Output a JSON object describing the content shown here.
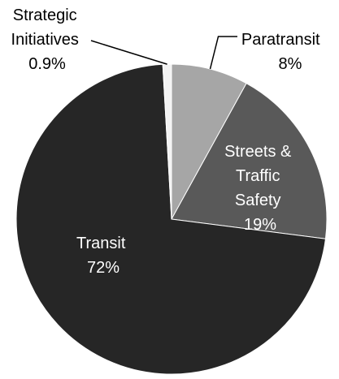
{
  "chart_data": {
    "type": "pie",
    "title": "",
    "start_angle_deg": 0,
    "direction": "clockwise",
    "slices": [
      {
        "name": "Paratransit",
        "value": 8,
        "value_label": "8%",
        "color": "#a6a6a6",
        "label_color": "#000000"
      },
      {
        "name": "Streets & Traffic Safety",
        "name_lines": [
          "Streets &",
          "Traffic",
          "Safety"
        ],
        "value": 19,
        "value_label": "19%",
        "color": "#595959",
        "label_color": "#ffffff"
      },
      {
        "name": "Transit",
        "value": 72,
        "value_label": "72%",
        "color": "#262626",
        "label_color": "#ffffff"
      },
      {
        "name": "Strategic Initiatives",
        "name_lines": [
          "Strategic",
          "Initiatives"
        ],
        "value": 0.9,
        "value_label": "0.9%",
        "color": "#f2f2f2",
        "label_color": "#000000"
      }
    ]
  }
}
